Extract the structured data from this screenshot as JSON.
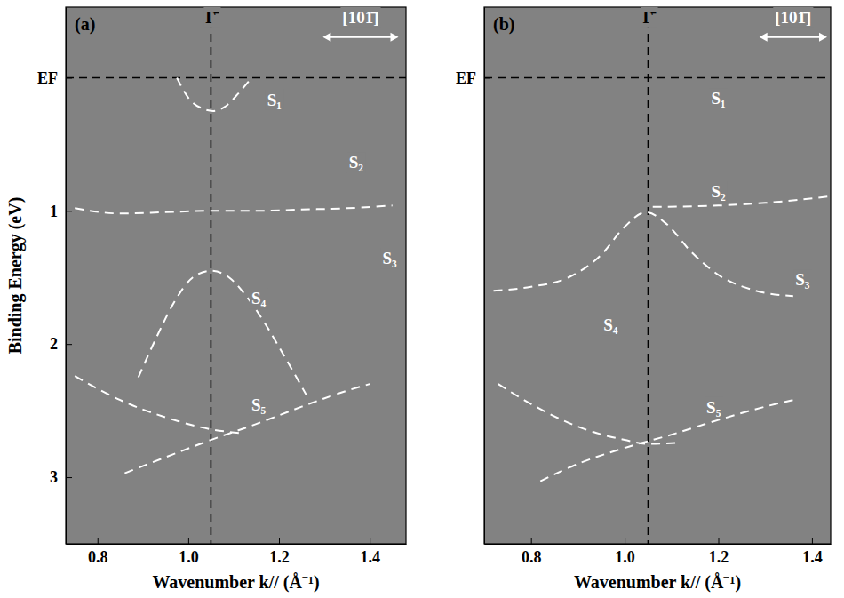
{
  "chart_data": [
    {
      "type": "line",
      "title": "(a)",
      "x_label": "Wavenumber k// (Å⁻¹)",
      "y_label": "Binding Energy (eV)",
      "xlim": [
        0.73,
        1.48
      ],
      "ylim": [
        -0.53,
        3.5
      ],
      "xticks": [
        0.8,
        {
          "value": 1,
          "label": "1.0"
        },
        1.2,
        1.4
      ],
      "yticks": [
        {
          "value": 0,
          "label": "EF"
        },
        1,
        2,
        3
      ],
      "ref_lines": [
        {
          "axis": "y",
          "value": 0
        },
        {
          "axis": "x",
          "value": 1.05
        }
      ],
      "series": [
        {
          "color": "#ffffff",
          "line_style": "dashed",
          "x": [
            0.975,
            1.0,
            1.03,
            1.055,
            1.08,
            1.11,
            1.135
          ],
          "values": [
            0.0,
            0.15,
            0.23,
            0.25,
            0.22,
            0.12,
            0.02
          ]
        },
        {
          "color": "#ffffff",
          "line_style": "dashed",
          "x": [
            0.75,
            0.85,
            0.95,
            1.05,
            1.15,
            1.25,
            1.35,
            1.45
          ],
          "values": [
            0.98,
            1.02,
            1.01,
            1.0,
            1.0,
            0.99,
            0.98,
            0.96
          ]
        },
        {
          "color": "#ffffff",
          "line_style": "dashed",
          "x": [
            0.89,
            0.93,
            0.97,
            1.01,
            1.05,
            1.09,
            1.13,
            1.17,
            1.21,
            1.26
          ],
          "values": [
            2.25,
            1.95,
            1.68,
            1.5,
            1.45,
            1.5,
            1.65,
            1.85,
            2.08,
            2.38
          ]
        },
        {
          "color": "#ffffff",
          "line_style": "dashed",
          "x": [
            0.75,
            0.85,
            0.95,
            1.05,
            1.12
          ],
          "values": [
            2.24,
            2.42,
            2.55,
            2.64,
            2.67
          ]
        },
        {
          "color": "#ffffff",
          "line_style": "dashed",
          "x": [
            0.86,
            0.95,
            1.05,
            1.15,
            1.25,
            1.35,
            1.4
          ],
          "values": [
            2.97,
            2.85,
            2.72,
            2.6,
            2.47,
            2.35,
            2.3
          ]
        }
      ],
      "annotations": [
        {
          "text": "Γ̄",
          "x": 1.05,
          "y": -0.44,
          "color": "#000000"
        },
        {
          "text": "[101̄]",
          "x": 1.38,
          "y": -0.44,
          "color": "#ffffff",
          "type": "arrow"
        },
        {
          "text": "S₁",
          "x": 1.19,
          "y": 0.18,
          "color": "#ffffff"
        },
        {
          "text": "S₂",
          "x": 1.37,
          "y": 0.65,
          "color": "#ffffff"
        },
        {
          "text": "S₃",
          "x": 1.444,
          "y": 1.37,
          "color": "#ffffff"
        },
        {
          "text": "S₄",
          "x": 1.155,
          "y": 1.67,
          "color": "#ffffff"
        },
        {
          "text": "S₅",
          "x": 1.155,
          "y": 2.47,
          "color": "#ffffff"
        }
      ]
    },
    {
      "type": "line",
      "title": "(b)",
      "x_label": "Wavenumber k// (Å⁻¹)",
      "xlim": [
        0.7,
        1.44
      ],
      "ylim": [
        -0.53,
        3.5
      ],
      "xticks": [
        0.8,
        {
          "value": 1,
          "label": "1.0"
        },
        1.2,
        1.4
      ],
      "yticks": [
        {
          "value": 0,
          "label": "EF"
        }
      ],
      "ref_lines": [
        {
          "axis": "y",
          "value": 0
        },
        {
          "axis": "x",
          "value": 1.05
        }
      ],
      "series": [
        {
          "color": "#ffffff",
          "line_style": "dashed",
          "x": [
            1.06,
            1.2,
            1.3,
            1.44
          ],
          "values": [
            0.97,
            0.96,
            0.94,
            0.89
          ]
        },
        {
          "color": "#ffffff",
          "line_style": "dashed",
          "x": [
            0.72,
            0.8,
            0.88,
            0.95,
            1.0,
            1.045,
            1.09,
            1.14,
            1.2,
            1.28,
            1.36
          ],
          "values": [
            1.6,
            1.57,
            1.5,
            1.33,
            1.12,
            1.01,
            1.1,
            1.3,
            1.48,
            1.6,
            1.64
          ]
        },
        {
          "color": "#ffffff",
          "line_style": "dashed",
          "x": [
            0.73,
            0.8,
            0.9,
            1.0,
            1.05,
            1.12
          ],
          "values": [
            2.3,
            2.45,
            2.62,
            2.72,
            2.75,
            2.74
          ]
        },
        {
          "color": "#ffffff",
          "line_style": "dashed",
          "x": [
            0.82,
            0.9,
            1.0,
            1.1,
            1.2,
            1.3,
            1.36
          ],
          "values": [
            3.03,
            2.9,
            2.78,
            2.68,
            2.57,
            2.47,
            2.42
          ]
        }
      ],
      "annotations": [
        {
          "text": "Γ̄",
          "x": 1.05,
          "y": -0.44,
          "color": "#000000"
        },
        {
          "text": "[101̄]",
          "x": 1.36,
          "y": -0.44,
          "color": "#ffffff",
          "type": "arrow"
        },
        {
          "text": "S₁",
          "x": 1.2,
          "y": 0.17,
          "color": "#ffffff"
        },
        {
          "text": "S₂",
          "x": 1.2,
          "y": 0.87,
          "color": "#ffffff"
        },
        {
          "text": "S₃",
          "x": 1.38,
          "y": 1.53,
          "color": "#ffffff"
        },
        {
          "text": "S₄",
          "x": 0.97,
          "y": 1.87,
          "color": "#ffffff"
        },
        {
          "text": "S₅",
          "x": 1.19,
          "y": 2.49,
          "color": "#ffffff"
        }
      ]
    }
  ]
}
